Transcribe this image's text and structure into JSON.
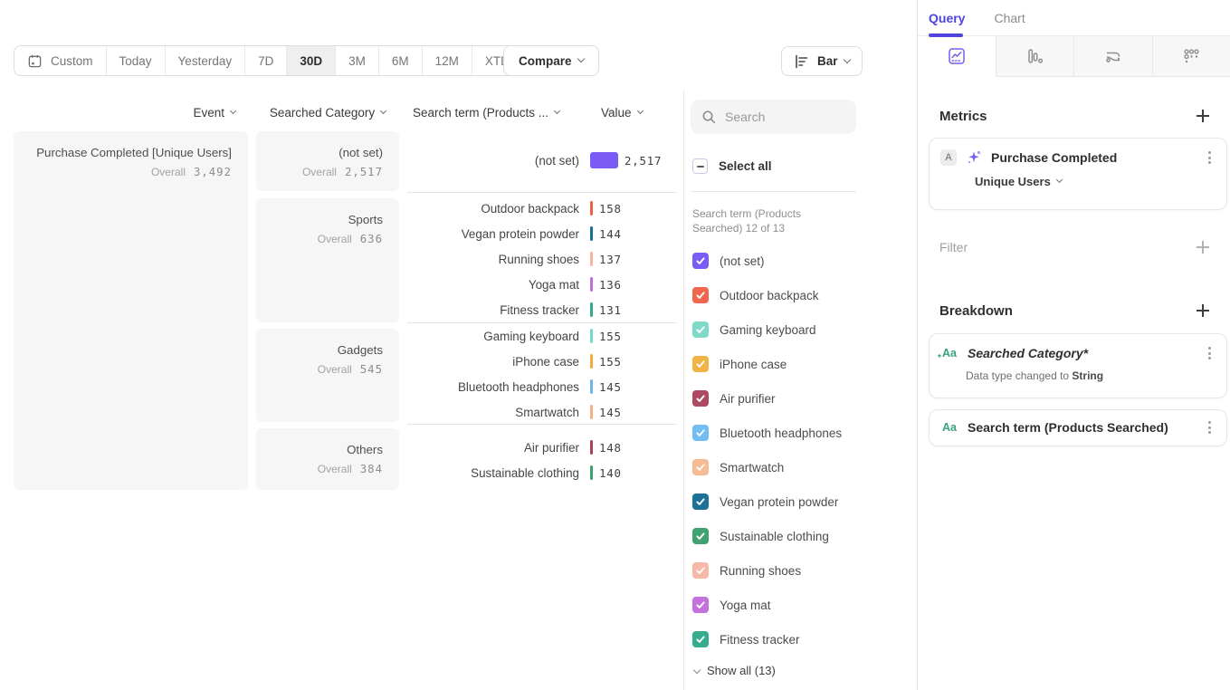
{
  "toolbar": {
    "date_presets": [
      "Custom",
      "Today",
      "Yesterday",
      "7D",
      "30D",
      "3M",
      "6M",
      "12M",
      "XTD"
    ],
    "selected_preset": "30D",
    "compare_label": "Compare",
    "chart_type": "Bar"
  },
  "table": {
    "headers": {
      "event": "Event",
      "category": "Searched Category",
      "term": "Search term (Products ...",
      "value": "Value"
    },
    "overall_label": "Overall",
    "event": {
      "name": "Purchase Completed [Unique Users]",
      "overall": "3,492"
    },
    "groups": [
      {
        "category": "(not set)",
        "overall": "2,517",
        "rows": [
          {
            "term": "(not set)",
            "value": "2,517",
            "color": "#7b5bf5",
            "bar": "31px"
          }
        ]
      },
      {
        "category": "Sports",
        "overall": "636",
        "rows": [
          {
            "term": "Outdoor backpack",
            "value": "158",
            "color": "#ed5f44",
            "bar": "3px"
          },
          {
            "term": "Vegan protein powder",
            "value": "144",
            "color": "#1a6f97",
            "bar": "3px"
          },
          {
            "term": "Running shoes",
            "value": "137",
            "color": "#f8b3a0",
            "bar": "3px"
          },
          {
            "term": "Yoga mat",
            "value": "136",
            "color": "#bf6fd9",
            "bar": "3px"
          },
          {
            "term": "Fitness tracker",
            "value": "131",
            "color": "#35a98c",
            "bar": "3px"
          }
        ]
      },
      {
        "category": "Gadgets",
        "overall": "545",
        "rows": [
          {
            "term": "Gaming keyboard",
            "value": "155",
            "color": "#74d7c8",
            "bar": "3px"
          },
          {
            "term": "iPhone case",
            "value": "155",
            "color": "#f2ac3e",
            "bar": "3px"
          },
          {
            "term": "Bluetooth headphones",
            "value": "145",
            "color": "#6cb6f0",
            "bar": "3px"
          },
          {
            "term": "Smartwatch",
            "value": "145",
            "color": "#f6b183",
            "bar": "3px"
          }
        ]
      },
      {
        "category": "Others",
        "overall": "384",
        "rows": [
          {
            "term": "Air purifier",
            "value": "148",
            "color": "#aa4257",
            "bar": "3px"
          },
          {
            "term": "Sustainable clothing",
            "value": "140",
            "color": "#39a26d",
            "bar": "3px"
          }
        ]
      }
    ]
  },
  "legend": {
    "search_placeholder": "Search",
    "select_all": "Select all",
    "context": "Search term (Products Searched) 12 of 13",
    "items": [
      {
        "label": "(not set)",
        "color": "#7b5bf5"
      },
      {
        "label": "Outdoor backpack",
        "color": "#f2664d"
      },
      {
        "label": "Gaming keyboard",
        "color": "#7ed9c8"
      },
      {
        "label": "iPhone case",
        "color": "#f0b344"
      },
      {
        "label": "Air purifier",
        "color": "#ad4a61"
      },
      {
        "label": "Bluetooth headphones",
        "color": "#72bdf2"
      },
      {
        "label": "Smartwatch",
        "color": "#f6bc92"
      },
      {
        "label": "Vegan protein powder",
        "color": "#1a7297"
      },
      {
        "label": "Sustainable clothing",
        "color": "#3fa270"
      },
      {
        "label": "Running shoes",
        "color": "#f8b9a8"
      },
      {
        "label": "Yoga mat",
        "color": "#c271dd"
      },
      {
        "label": "Fitness tracker",
        "color": "#35ab8f"
      }
    ],
    "show_all": "Show all (13)"
  },
  "sidebar": {
    "tabs": {
      "query": "Query",
      "chart": "Chart"
    },
    "metrics_heading": "Metrics",
    "metric_card": {
      "badge": "A",
      "title": "Purchase Completed",
      "subtitle": "Unique Users"
    },
    "filter_heading": "Filter",
    "breakdown_heading": "Breakdown",
    "breakdown_cards": [
      {
        "type_icon": "Aa",
        "title": "Searched Category*",
        "note_prefix": "Data type changed to ",
        "note_bold": "String"
      },
      {
        "type_icon": "Aa",
        "title": "Search term (Products Searched)"
      }
    ]
  },
  "colors": {
    "accent": "#4f44e0",
    "highlight_bar": "#7b5bf5"
  }
}
